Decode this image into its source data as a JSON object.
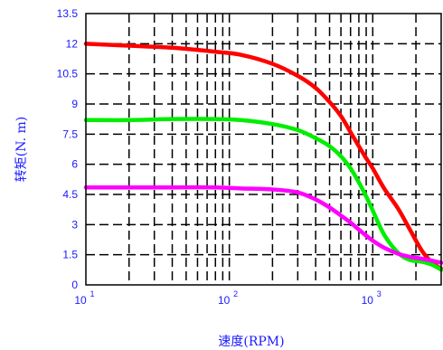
{
  "chart_data": {
    "type": "line",
    "title": "",
    "xlabel": "速度(RPM)",
    "ylabel": "转矩(N. m)",
    "x_scale": "log",
    "xlim": [
      10,
      3000
    ],
    "ylim": [
      0,
      13.5
    ],
    "grid": true,
    "y_ticks": [
      "0",
      "1.5",
      "3",
      "4.5",
      "6",
      "7.5",
      "9",
      "10.5",
      "12",
      "13.5"
    ],
    "x_ticks": [
      {
        "value": 10,
        "base": "10",
        "exp": "1"
      },
      {
        "value": 100,
        "base": "10",
        "exp": "2"
      },
      {
        "value": 1000,
        "base": "10",
        "exp": "3"
      }
    ],
    "series": [
      {
        "color": "#ff0000",
        "x": [
          10,
          20,
          40,
          80,
          120,
          200,
          300,
          400,
          500,
          600,
          700,
          800,
          900,
          1000,
          1200,
          1500,
          1800,
          2200,
          2600,
          3000
        ],
        "y": [
          12.0,
          11.9,
          11.8,
          11.6,
          11.45,
          11.0,
          10.4,
          9.8,
          9.1,
          8.4,
          7.6,
          6.9,
          6.3,
          5.8,
          4.8,
          3.8,
          2.8,
          1.7,
          1.1,
          0.8
        ]
      },
      {
        "color": "#00ee00",
        "x": [
          10,
          20,
          40,
          80,
          120,
          200,
          300,
          400,
          500,
          600,
          700,
          800,
          900,
          1000,
          1200,
          1500,
          1800,
          2200,
          2600,
          3000
        ],
        "y": [
          8.2,
          8.2,
          8.25,
          8.25,
          8.2,
          8.0,
          7.7,
          7.3,
          6.9,
          6.4,
          5.8,
          5.1,
          4.4,
          3.7,
          2.5,
          1.6,
          1.25,
          1.15,
          1.0,
          0.75
        ]
      },
      {
        "color": "#ff00ff",
        "x": [
          10,
          20,
          40,
          80,
          120,
          200,
          300,
          400,
          500,
          600,
          700,
          800,
          900,
          1000,
          1200,
          1500,
          1800,
          2200,
          2600,
          3000
        ],
        "y": [
          4.85,
          4.85,
          4.85,
          4.85,
          4.8,
          4.75,
          4.6,
          4.25,
          3.85,
          3.45,
          3.1,
          2.75,
          2.45,
          2.2,
          1.85,
          1.55,
          1.4,
          1.3,
          1.2,
          1.1
        ]
      }
    ]
  }
}
